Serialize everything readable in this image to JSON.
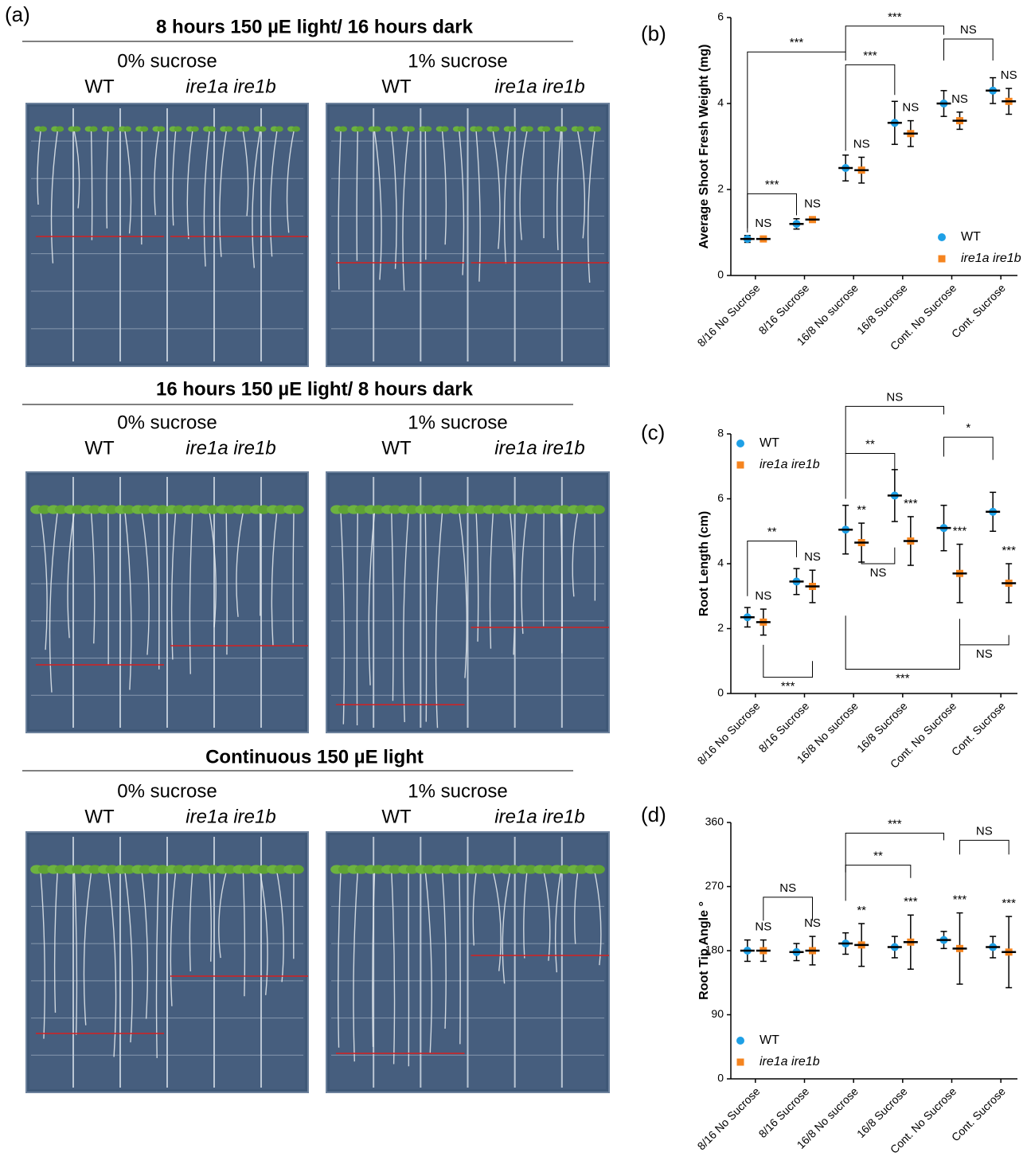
{
  "panel_a": {
    "label": "(a)",
    "sections": [
      {
        "title": "8 hours 150 µE light/ 16 hours dark",
        "left": {
          "treatment": "0% sucrose",
          "wt": "WT",
          "mutant": "ire1a ire1b"
        },
        "right": {
          "treatment": "1% sucrose",
          "wt": "WT",
          "mutant": "ire1a ire1b"
        }
      },
      {
        "title": "16 hours 150 µE light/ 8 hours dark",
        "left": {
          "treatment": "0% sucrose",
          "wt": "WT",
          "mutant": "ire1a ire1b"
        },
        "right": {
          "treatment": "1% sucrose",
          "wt": "WT",
          "mutant": "ire1a ire1b"
        }
      },
      {
        "title": "Continuous 150 µE light",
        "left": {
          "treatment": "0% sucrose",
          "wt": "WT",
          "mutant": "ire1a ire1b"
        },
        "right": {
          "treatment": "1% sucrose",
          "wt": "WT",
          "mutant": "ire1a ire1b"
        }
      }
    ]
  },
  "chart_data": [
    {
      "type": "dotplot",
      "panel_label": "(b)",
      "ylabel": "Average  Shoot  Fresh Weight (mg)",
      "categories": [
        "8/16 No Sucrose",
        "8/16 Sucrose",
        "16/8 No sucrose",
        "16/8 Sucrose",
        "Cont. No Sucrose",
        "Cont. Sucrose"
      ],
      "series": [
        {
          "name": "WT",
          "color": "#1ea0e6",
          "values": [
            0.85,
            1.2,
            2.5,
            3.55,
            4.0,
            4.3
          ],
          "errors": [
            0.08,
            0.12,
            0.3,
            0.5,
            0.3,
            0.3
          ]
        },
        {
          "name": "ire1a ire1b",
          "color": "#f5841f",
          "values": [
            0.85,
            1.3,
            2.45,
            3.3,
            3.6,
            4.05
          ],
          "errors": [
            0.06,
            0.06,
            0.3,
            0.3,
            0.2,
            0.3
          ],
          "annotations": [
            "NS",
            "NS",
            "NS",
            "NS",
            "NS",
            "NS"
          ]
        }
      ],
      "ylim": [
        0,
        6
      ],
      "yticks": [
        0,
        2,
        4,
        6
      ],
      "legend": "lower right",
      "brackets": [
        "***",
        "***",
        "***",
        "***",
        "NS"
      ]
    },
    {
      "type": "dotplot",
      "panel_label": "(c)",
      "ylabel": "Root Length (cm)",
      "categories": [
        "8/16 No Sucrose",
        "8/16 Sucrose",
        "16/8 No sucrose",
        "16/8 Sucrose",
        "Cont. No Sucrose",
        "Cont. Sucrose"
      ],
      "series": [
        {
          "name": "WT",
          "color": "#1ea0e6",
          "values": [
            2.35,
            3.45,
            5.05,
            6.1,
            5.1,
            5.6
          ],
          "errors": [
            0.3,
            0.4,
            0.75,
            0.8,
            0.7,
            0.6
          ]
        },
        {
          "name": "ire1a ire1b",
          "color": "#f5841f",
          "values": [
            2.2,
            3.3,
            4.65,
            4.7,
            3.7,
            3.4
          ],
          "errors": [
            0.4,
            0.5,
            0.6,
            0.75,
            0.9,
            0.6
          ],
          "annotations": [
            "NS",
            "NS",
            "**",
            "***",
            "***",
            "***"
          ]
        }
      ],
      "ylim": [
        0,
        8
      ],
      "yticks": [
        0,
        2,
        4,
        6,
        8
      ],
      "legend": "upper left",
      "brackets": [
        "**",
        "***",
        "**",
        "NS",
        "NS",
        "***",
        "*",
        "NS"
      ]
    },
    {
      "type": "dotplot",
      "panel_label": "(d)",
      "ylabel": "Root Tip Angle °",
      "categories": [
        "8/16 No Sucrose",
        "8/16 Sucrose",
        "16/8 No sucrose",
        "16/8 Sucrose",
        "Cont. No Sucrose",
        "Cont. Sucrose"
      ],
      "series": [
        {
          "name": "WT",
          "color": "#1ea0e6",
          "values": [
            180,
            178,
            190,
            185,
            195,
            185
          ],
          "errors": [
            15,
            12,
            15,
            15,
            12,
            15
          ]
        },
        {
          "name": "ire1a ire1b",
          "color": "#f5841f",
          "values": [
            180,
            180,
            188,
            192,
            183,
            178
          ],
          "errors": [
            15,
            20,
            30,
            38,
            50,
            50
          ],
          "annotations": [
            "NS",
            "NS",
            "**",
            "***",
            "***",
            "***"
          ]
        }
      ],
      "ylim": [
        0,
        360
      ],
      "yticks": [
        0,
        90,
        180,
        270,
        360
      ],
      "legend": "lower left",
      "brackets": [
        "NS",
        "***",
        "**",
        "NS"
      ]
    }
  ]
}
